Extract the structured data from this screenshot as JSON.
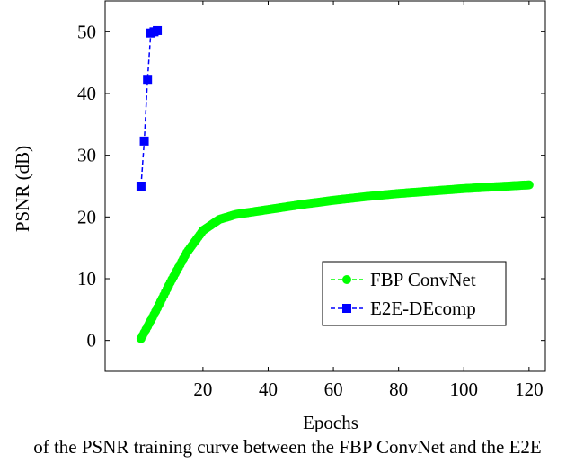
{
  "caption": "of the PSNR training curve between the FBP ConvNet and the E2E",
  "chart_data": {
    "type": "line",
    "title": "",
    "xlabel": "Epochs",
    "ylabel": "PSNR (dB)",
    "xlim": [
      -10,
      125
    ],
    "ylim": [
      -5,
      55
    ],
    "xticks": [
      20,
      40,
      60,
      80,
      100,
      120
    ],
    "yticks": [
      0,
      10,
      20,
      30,
      40,
      50
    ],
    "grid": false,
    "legend_position": "bottom-right",
    "series": [
      {
        "name": "FBP ConvNet",
        "color": "#00ff00",
        "marker": "circle",
        "line_style": "dashed",
        "x": [
          1,
          5,
          10,
          15,
          20,
          25,
          30,
          35,
          40,
          50,
          60,
          70,
          80,
          90,
          100,
          110,
          120
        ],
        "y": [
          0.3,
          4.2,
          9.4,
          14.2,
          17.8,
          19.6,
          20.4,
          20.8,
          21.2,
          22.0,
          22.7,
          23.3,
          23.8,
          24.2,
          24.6,
          24.9,
          25.2
        ]
      },
      {
        "name": "E2E-DEcomp",
        "color": "#0000ff",
        "marker": "square",
        "line_style": "dashed",
        "x": [
          1,
          2,
          3,
          4,
          5,
          6
        ],
        "y": [
          25.0,
          32.3,
          42.3,
          49.8,
          50.0,
          50.2
        ]
      }
    ]
  }
}
